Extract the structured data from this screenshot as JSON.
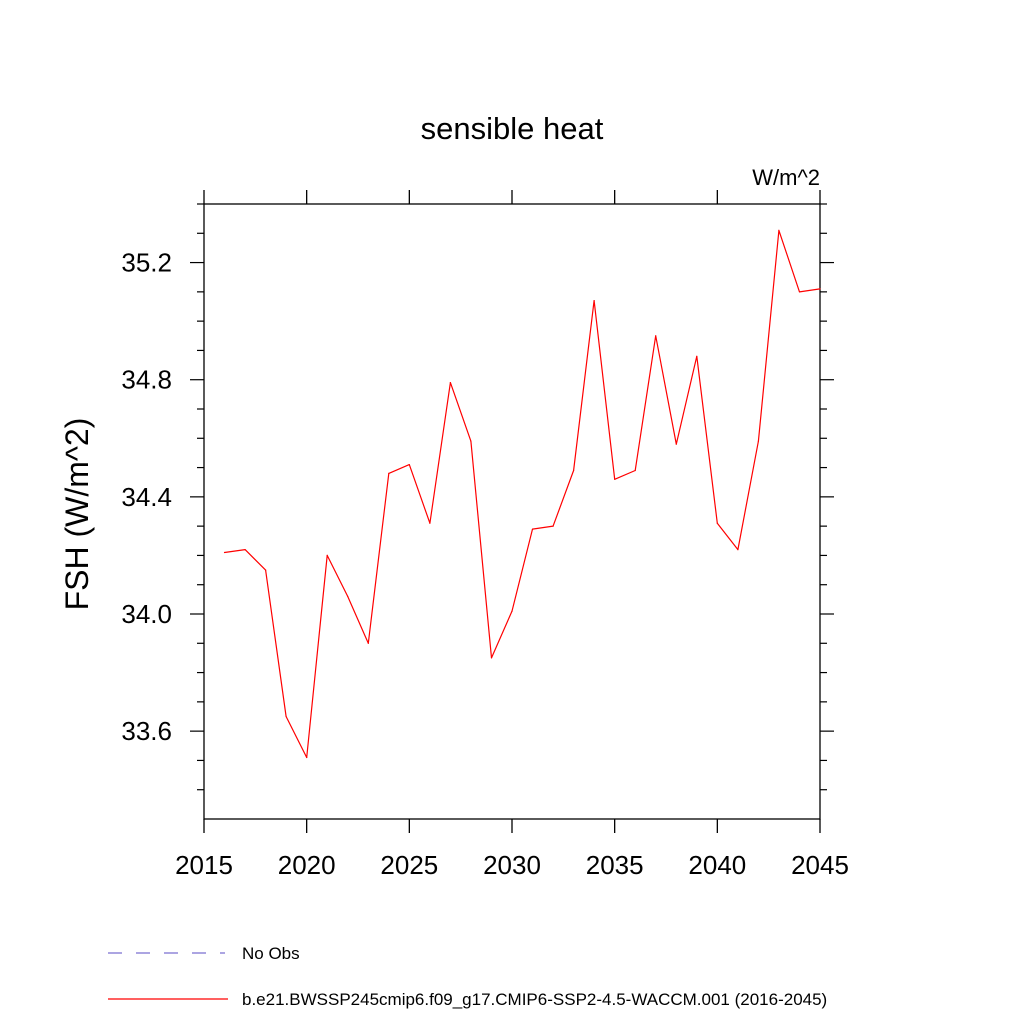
{
  "chart_data": {
    "type": "line",
    "title": "sensible heat",
    "units": "W/m^2",
    "xlabel": "",
    "ylabel": "FSH  (W/m^2)",
    "xlim": [
      2015,
      2045
    ],
    "ylim": [
      33.3,
      35.4
    ],
    "x_ticks": [
      2015,
      2020,
      2025,
      2030,
      2035,
      2040,
      2045
    ],
    "y_ticks": [
      33.6,
      34.0,
      34.4,
      34.8,
      35.2
    ],
    "y_tick_labels": [
      "33.6",
      "34.0",
      "34.4",
      "34.8",
      "35.2"
    ],
    "grid": false,
    "legend_position": "bottom",
    "legend": [
      {
        "label": "No Obs",
        "color": "#7b6fd0",
        "dash": "dashed"
      },
      {
        "label": "b.e21.BWSSP245cmip6.f09_g17.CMIP6-SSP2-4.5-WACCM.001 (2016-2045)",
        "color": "#ff0000",
        "dash": "solid"
      }
    ],
    "series": [
      {
        "name": "b.e21.BWSSP245cmip6.f09_g17.CMIP6-SSP2-4.5-WACCM.001 (2016-2045)",
        "color": "#ff0000",
        "x": [
          2016,
          2017,
          2018,
          2019,
          2020,
          2021,
          2022,
          2023,
          2024,
          2025,
          2026,
          2027,
          2028,
          2029,
          2030,
          2031,
          2032,
          2033,
          2034,
          2035,
          2036,
          2037,
          2038,
          2039,
          2040,
          2041,
          2042,
          2043,
          2044,
          2045
        ],
        "values": [
          34.21,
          34.22,
          34.15,
          33.65,
          33.51,
          34.2,
          34.06,
          33.9,
          34.48,
          34.51,
          34.31,
          34.79,
          34.59,
          33.85,
          34.01,
          34.29,
          34.3,
          34.49,
          35.07,
          34.46,
          34.49,
          34.95,
          34.58,
          34.88,
          34.31,
          34.22,
          34.59,
          35.31,
          35.1,
          35.11
        ]
      }
    ]
  }
}
